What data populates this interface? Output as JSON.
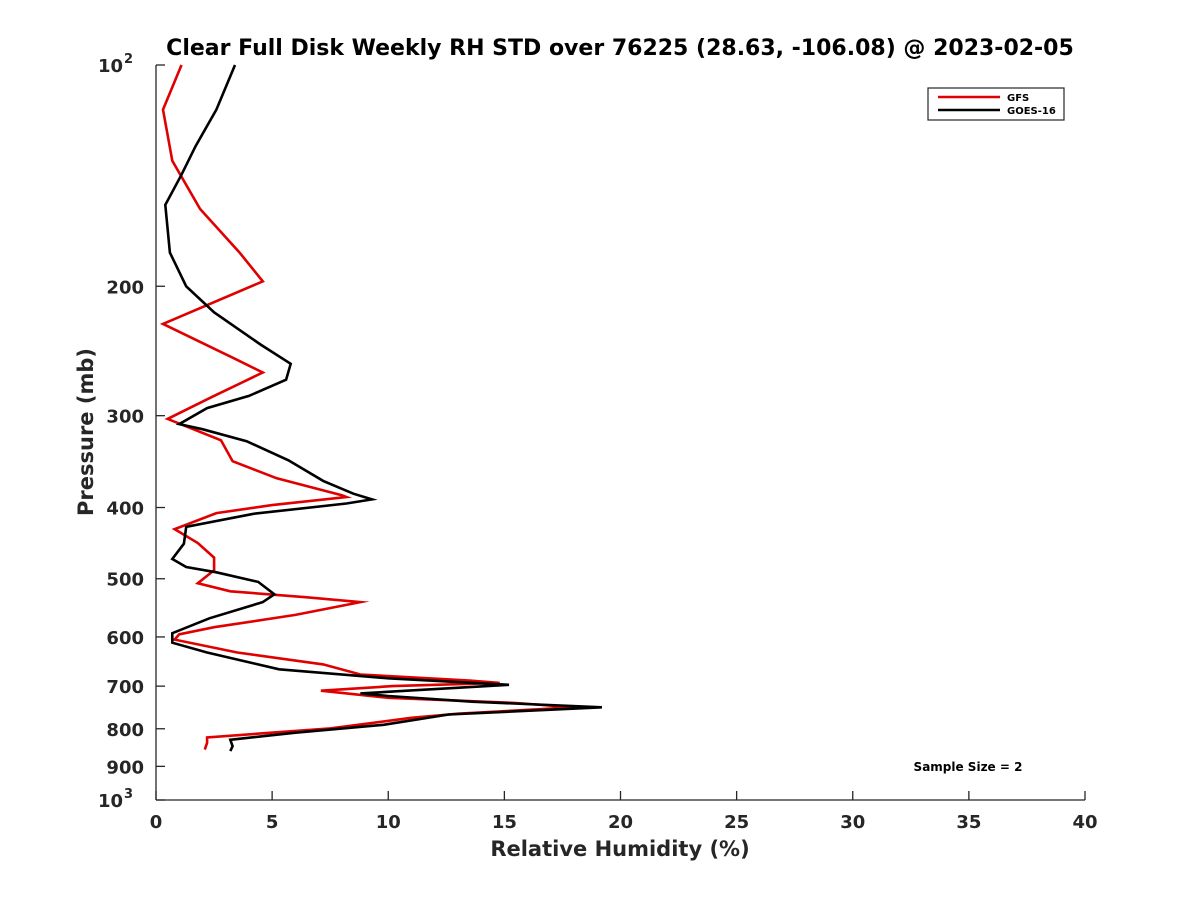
{
  "chart_data": {
    "type": "line",
    "title": "Clear Full Disk Weekly RH STD over 76225 (28.63, -106.08) @ 2023-02-05",
    "xlabel": "Relative Humidity (%)",
    "ylabel": "Pressure (mb)",
    "xlim": [
      0,
      40
    ],
    "ylim": [
      100,
      1000
    ],
    "y_scale": "log",
    "y_reversed": true,
    "grid": false,
    "x_ticks": [
      "0",
      "5",
      "10",
      "15",
      "20",
      "25",
      "30",
      "35",
      "40"
    ],
    "x_tick_values": [
      0,
      5,
      10,
      15,
      20,
      25,
      30,
      35,
      40
    ],
    "y_ticks": [
      {
        "value": 100,
        "base": "10",
        "sup": "2"
      },
      {
        "value": 200,
        "label": "200"
      },
      {
        "value": 300,
        "label": "300"
      },
      {
        "value": 400,
        "label": "400"
      },
      {
        "value": 500,
        "label": "500"
      },
      {
        "value": 600,
        "label": "600"
      },
      {
        "value": 700,
        "label": "700"
      },
      {
        "value": 800,
        "label": "800"
      },
      {
        "value": 900,
        "label": "900"
      },
      {
        "value": 1000,
        "base": "10",
        "sup": "3"
      }
    ],
    "legend_position": "top-right",
    "annotation": "Sample Size = 2",
    "series": [
      {
        "name": "GFS",
        "color": "#e00000",
        "points": [
          [
            1.1,
            100
          ],
          [
            0.3,
            115
          ],
          [
            0.7,
            135
          ],
          [
            1.9,
            157
          ],
          [
            3.6,
            180
          ],
          [
            4.6,
            197
          ],
          [
            0.3,
            225
          ],
          [
            3.4,
            251
          ],
          [
            4.6,
            262
          ],
          [
            2.4,
            283
          ],
          [
            0.5,
            303
          ],
          [
            2.8,
            324
          ],
          [
            3.3,
            346
          ],
          [
            5.2,
            365
          ],
          [
            8.0,
            385
          ],
          [
            8.2,
            387
          ],
          [
            5.0,
            397
          ],
          [
            2.6,
            407
          ],
          [
            0.8,
            428
          ],
          [
            1.8,
            447
          ],
          [
            2.5,
            468
          ],
          [
            2.5,
            487
          ],
          [
            1.8,
            507
          ],
          [
            3.2,
            520
          ],
          [
            6.5,
            530
          ],
          [
            8.8,
            538
          ],
          [
            6.0,
            560
          ],
          [
            2.5,
            582
          ],
          [
            1.0,
            595
          ],
          [
            0.8,
            605
          ],
          [
            3.5,
            630
          ],
          [
            7.2,
            654
          ],
          [
            8.8,
            675
          ],
          [
            13.5,
            688
          ],
          [
            14.8,
            693
          ],
          [
            10.2,
            700
          ],
          [
            7.1,
            710
          ],
          [
            10.0,
            726
          ],
          [
            15.5,
            738
          ],
          [
            18.0,
            748
          ],
          [
            13.0,
            763
          ],
          [
            11.0,
            773
          ],
          [
            7.5,
            799
          ],
          [
            2.2,
            822
          ],
          [
            2.2,
            836
          ],
          [
            2.1,
            854
          ]
        ]
      },
      {
        "name": "GOES-16",
        "color": "#000000",
        "points": [
          [
            3.4,
            100
          ],
          [
            2.6,
            115
          ],
          [
            1.7,
            129
          ],
          [
            1.1,
            141
          ],
          [
            0.4,
            155
          ],
          [
            0.6,
            180
          ],
          [
            1.3,
            200
          ],
          [
            2.5,
            217
          ],
          [
            4.5,
            240
          ],
          [
            5.8,
            255
          ],
          [
            5.6,
            268
          ],
          [
            4.0,
            282
          ],
          [
            2.2,
            293
          ],
          [
            1.0,
            308
          ],
          [
            2.0,
            313
          ],
          [
            3.9,
            325
          ],
          [
            5.7,
            345
          ],
          [
            7.2,
            368
          ],
          [
            8.5,
            383
          ],
          [
            9.3,
            390
          ],
          [
            8.2,
            395
          ],
          [
            4.2,
            408
          ],
          [
            1.3,
            425
          ],
          [
            1.2,
            448
          ],
          [
            0.7,
            470
          ],
          [
            1.3,
            482
          ],
          [
            2.6,
            490
          ],
          [
            4.4,
            505
          ],
          [
            5.1,
            525
          ],
          [
            4.6,
            538
          ],
          [
            2.3,
            566
          ],
          [
            0.7,
            593
          ],
          [
            0.7,
            611
          ],
          [
            2.2,
            630
          ],
          [
            5.3,
            664
          ],
          [
            10.0,
            683
          ],
          [
            15.2,
            697
          ],
          [
            8.8,
            716
          ],
          [
            10.0,
            722
          ],
          [
            13.6,
            735
          ],
          [
            19.2,
            748
          ],
          [
            12.6,
            765
          ],
          [
            9.8,
            790
          ],
          [
            6.0,
            810
          ],
          [
            3.2,
            828
          ],
          [
            3.3,
            845
          ],
          [
            3.2,
            858
          ]
        ]
      }
    ]
  }
}
